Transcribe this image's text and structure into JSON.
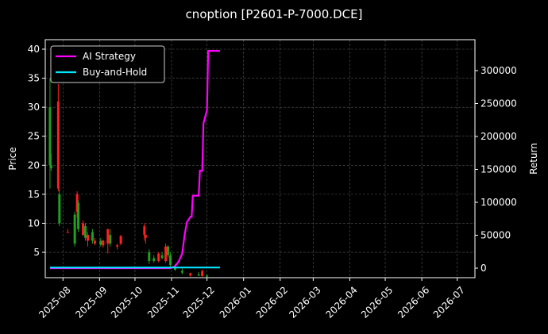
{
  "chart_data": {
    "type": "candlestick",
    "title": "cnoption [P2601-P-7000.DCE]",
    "y_label": "Price",
    "y2_label": "Return",
    "xlim": [
      "2025-07-17",
      "2026-07-16"
    ],
    "xticks": [
      "2025-08",
      "2025-09",
      "2025-10",
      "2025-11",
      "2025-12",
      "2026-01",
      "2026-02",
      "2026-03",
      "2026-04",
      "2026-05",
      "2026-06",
      "2026-07"
    ],
    "ylim": [
      0.63,
      41.64
    ],
    "yticks": [
      5,
      10,
      15,
      20,
      25,
      30,
      35,
      40
    ],
    "y2lim": [
      -14458,
      346988
    ],
    "y2ticks": [
      0,
      50000,
      100000,
      150000,
      200000,
      250000,
      300000
    ],
    "grid": true,
    "legend": "upper left",
    "up_color": "#ff2020",
    "down_color": "#20a020",
    "candles": {
      "x": [
        "2025-07-21",
        "2025-07-22",
        "2025-07-28",
        "2025-07-29",
        "2025-08-05",
        "2025-08-11",
        "2025-08-13",
        "2025-08-14",
        "2025-08-18",
        "2025-08-20",
        "2025-08-22",
        "2025-08-26",
        "2025-08-28",
        "2025-09-02",
        "2025-09-04",
        "2025-09-08",
        "2025-09-10",
        "2025-09-16",
        "2025-09-19",
        "2025-10-09",
        "2025-10-10",
        "2025-10-13",
        "2025-10-17",
        "2025-10-21",
        "2025-10-24",
        "2025-10-27",
        "2025-10-29",
        "2025-10-31",
        "2025-11-04",
        "2025-11-10",
        "2025-11-17",
        "2025-11-24",
        "2025-11-27",
        "2025-12-01"
      ],
      "open": [
        30,
        20,
        16,
        15,
        8.5,
        11.5,
        12,
        13.5,
        8,
        9.5,
        7,
        8.5,
        6.5,
        7,
        6.2,
        6.5,
        8,
        6,
        6.5,
        8,
        7.5,
        5,
        4,
        3.5,
        4.5,
        3.5,
        6,
        4.5,
        2.5,
        1.8,
        1,
        1.2,
        0.9,
        1
      ],
      "high": [
        35,
        22,
        34,
        16,
        9,
        12,
        15.5,
        14,
        10.5,
        10,
        8.5,
        9,
        7.5,
        7.5,
        7.2,
        9,
        9,
        6.5,
        8,
        10,
        8,
        5.5,
        4.5,
        5,
        5,
        6.5,
        6.2,
        5,
        3,
        2.2,
        1.5,
        1.6,
        2,
        1.2
      ],
      "low": [
        16,
        19,
        15.5,
        9.5,
        8.3,
        6,
        11,
        8.5,
        7.8,
        7,
        6,
        6.5,
        6.2,
        6,
        5.8,
        4.8,
        6,
        5.5,
        6.2,
        7,
        6.5,
        3,
        3.2,
        3.3,
        3.8,
        3.2,
        4,
        2.5,
        1.8,
        1.2,
        0.8,
        0.9,
        0.8,
        0.7
      ],
      "close": [
        20,
        19.5,
        31,
        10,
        8.5,
        6.5,
        15,
        9,
        10,
        7.5,
        8,
        7,
        7,
        6.3,
        7,
        9,
        6.5,
        6.2,
        7.8,
        9.5,
        8,
        3.5,
        3.5,
        4.8,
        4,
        6,
        4.5,
        2.8,
        2,
        1.5,
        1.4,
        1,
        1.8,
        0.8
      ]
    },
    "series": [
      {
        "name": "AI Strategy",
        "color": "#ff00ff",
        "axis": "y2",
        "x": [
          "2025-07-21",
          "2025-10-31",
          "2025-11-04",
          "2025-11-07",
          "2025-11-10",
          "2025-11-12",
          "2025-11-14",
          "2025-11-17",
          "2025-11-18",
          "2025-11-19",
          "2025-11-24",
          "2025-11-25",
          "2025-11-27",
          "2025-11-28",
          "2025-12-01",
          "2025-12-02",
          "2025-12-12"
        ],
        "values": [
          0,
          0,
          3000,
          10000,
          22000,
          50000,
          70000,
          78000,
          78000,
          110000,
          110000,
          148000,
          148000,
          220000,
          240000,
          330000,
          330000
        ]
      },
      {
        "name": "Buy-and-Hold",
        "color": "#00e5ff",
        "axis": "y2",
        "x": [
          "2025-07-21",
          "2025-12-12"
        ],
        "values": [
          1000,
          1000
        ]
      }
    ]
  }
}
